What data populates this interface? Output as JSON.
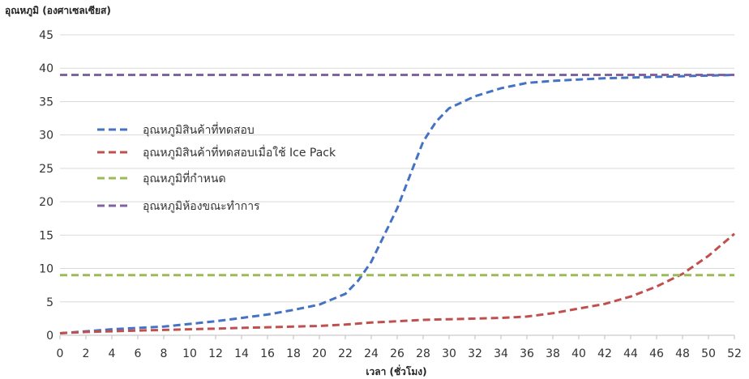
{
  "chart_data": {
    "type": "line",
    "ylabel": "อุณหภูมิ (องศาเซลเซียส)",
    "xlabel": "เวลา (ชั่วโมง)",
    "xlim": [
      0,
      52
    ],
    "ylim": [
      0,
      45
    ],
    "x_ticks": [
      0,
      2,
      4,
      6,
      8,
      10,
      12,
      14,
      16,
      18,
      20,
      22,
      24,
      26,
      28,
      30,
      32,
      34,
      36,
      38,
      40,
      42,
      44,
      46,
      48,
      50,
      52
    ],
    "y_ticks": [
      0,
      5,
      10,
      15,
      20,
      25,
      30,
      35,
      40,
      45
    ],
    "grid": "horizontal",
    "legend_position": "left",
    "series": [
      {
        "name": "อุณหภูมิสินค้าที่ทดสอบ",
        "color": "#4472C4",
        "dash": "dashed",
        "x": [
          0,
          2,
          4,
          6,
          8,
          10,
          12,
          14,
          16,
          18,
          20,
          22,
          23,
          24,
          26,
          27,
          28,
          29,
          30,
          32,
          34,
          36,
          38,
          40,
          42,
          44,
          46,
          48,
          50,
          52
        ],
        "y": [
          0.3,
          0.6,
          0.9,
          1.1,
          1.3,
          1.7,
          2.1,
          2.6,
          3.1,
          3.8,
          4.6,
          6.2,
          8.2,
          11,
          19,
          24,
          29,
          32,
          34,
          35.8,
          37,
          37.8,
          38.1,
          38.3,
          38.5,
          38.6,
          38.7,
          38.8,
          38.9,
          39
        ]
      },
      {
        "name": "อุณหภูมิสินค้าที่ทดสอบเมื่อใช้ Ice Pack",
        "color": "#C0504D",
        "dash": "dashed",
        "x": [
          0,
          2,
          4,
          6,
          8,
          10,
          12,
          14,
          16,
          18,
          20,
          22,
          24,
          26,
          28,
          30,
          32,
          34,
          36,
          38,
          40,
          42,
          44,
          46,
          48,
          50,
          52
        ],
        "y": [
          0.3,
          0.5,
          0.6,
          0.7,
          0.8,
          0.9,
          1.0,
          1.1,
          1.2,
          1.3,
          1.4,
          1.6,
          1.9,
          2.1,
          2.3,
          2.4,
          2.5,
          2.6,
          2.8,
          3.3,
          4.0,
          4.7,
          5.8,
          7.3,
          9.2,
          11.9,
          15.2
        ]
      },
      {
        "name": "อุณหภูมิที่กำหนด",
        "color": "#9BBB59",
        "dash": "dashed",
        "x": [
          0,
          52
        ],
        "y": [
          9,
          9
        ]
      },
      {
        "name": "อุณหภูมิห้องขณะทำการ",
        "color": "#8064A2",
        "dash": "dashed",
        "x": [
          0,
          52
        ],
        "y": [
          39,
          39
        ]
      }
    ]
  }
}
